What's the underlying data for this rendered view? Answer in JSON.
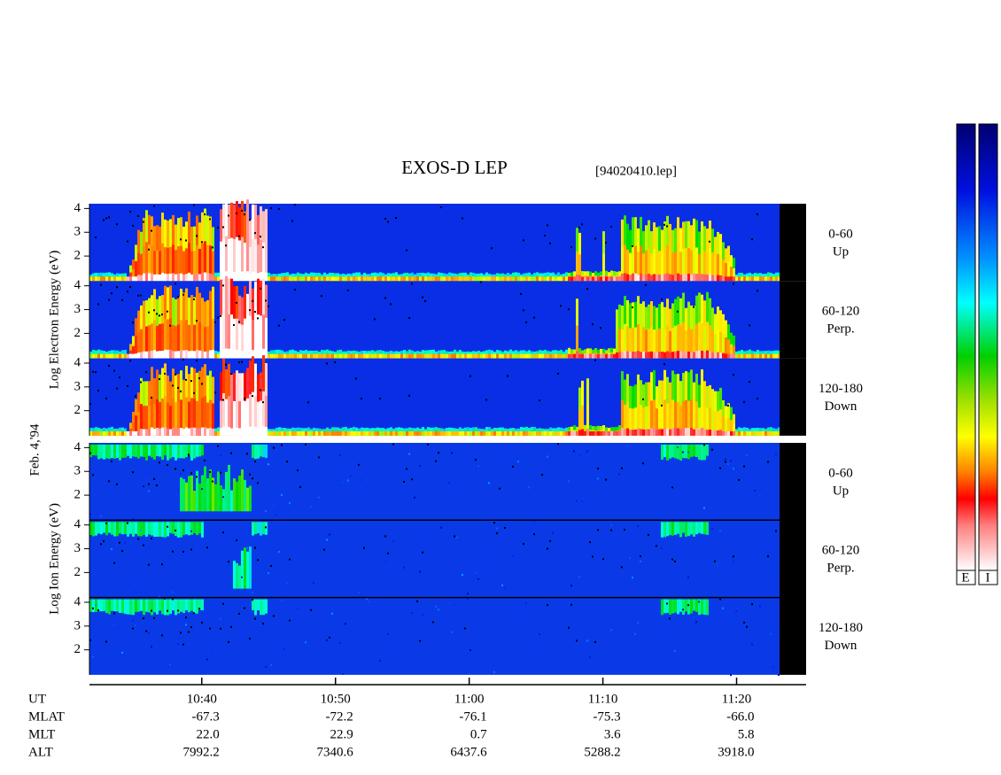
{
  "chart_data": {
    "type": "spectrogram",
    "title": "EXOS-D LEP",
    "subtitle": "[94020410.lep]",
    "date_label": "Feb. 4,'94",
    "x_label": "UT",
    "xlim": [
      631.6,
      685.2
    ],
    "xticks": [
      {
        "value": 640,
        "label": "10:40"
      },
      {
        "value": 650,
        "label": "10:50"
      },
      {
        "value": 660,
        "label": "11:00"
      },
      {
        "value": 670,
        "label": "11:10"
      },
      {
        "value": 680,
        "label": "11:20"
      }
    ],
    "groups": [
      {
        "ylabel": "Log   Electron   Energy (eV)",
        "ylim": [
          0.95,
          4.2
        ],
        "yticks": [
          2,
          3,
          4
        ],
        "panels": [
          {
            "name": "0-60",
            "direction": "Up"
          },
          {
            "name": "60-120",
            "direction": "Perp."
          },
          {
            "name": "120-180",
            "direction": "Down"
          }
        ]
      },
      {
        "ylabel": "Log   Ion   Energy (eV)",
        "ylim": [
          0.95,
          4.2
        ],
        "yticks": [
          2,
          3,
          4
        ],
        "panels": [
          {
            "name": "0-60",
            "direction": "Up"
          },
          {
            "name": "60-120",
            "direction": "Perp."
          },
          {
            "name": "120-180",
            "direction": "Down"
          }
        ]
      }
    ],
    "ephemeris": [
      {
        "label": "MLAT",
        "values": [
          "-67.3",
          "-72.2",
          "-76.1",
          "-75.3",
          "-66.0"
        ]
      },
      {
        "label": "MLT",
        "values": [
          "22.0",
          "22.9",
          "0.7",
          "3.6",
          "5.8"
        ]
      },
      {
        "label": "ALT",
        "values": [
          "7992.2",
          "7340.6",
          "6437.6",
          "5288.2",
          "3918.0"
        ]
      }
    ],
    "colorbar_labels": [
      "E",
      "I"
    ]
  }
}
